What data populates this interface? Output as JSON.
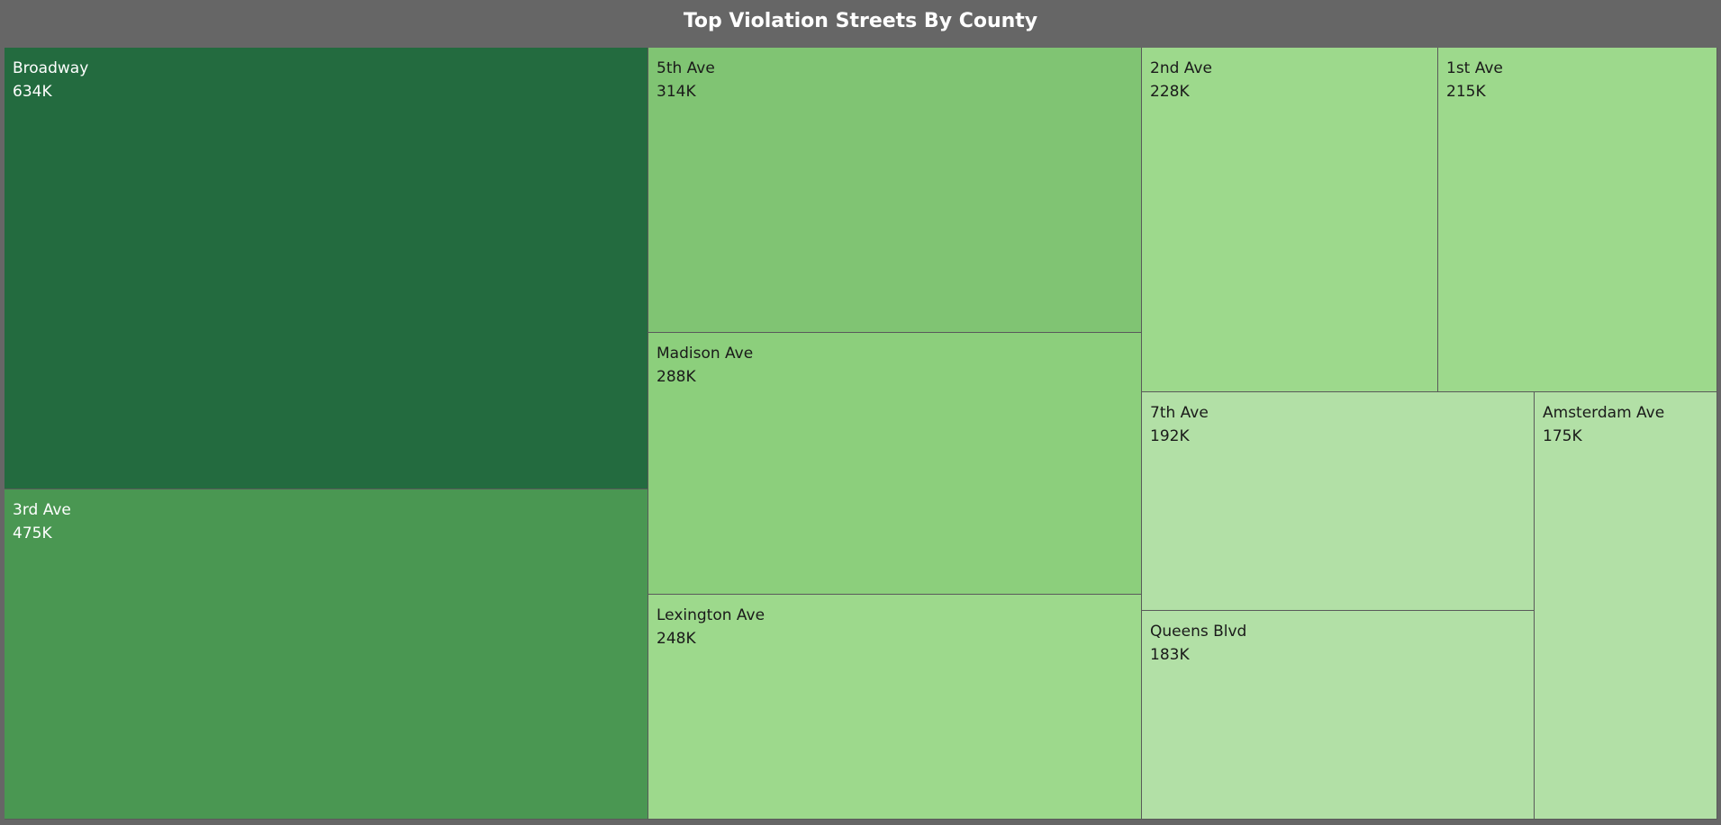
{
  "chart_data": {
    "type": "treemap",
    "title": "Top Violation Streets By County",
    "items": [
      {
        "name": "Broadway",
        "value": 634000,
        "value_label": "634K",
        "color": "#236b3f"
      },
      {
        "name": "3rd Ave",
        "value": 475000,
        "value_label": "475K",
        "color": "#4a9752"
      },
      {
        "name": "5th Ave",
        "value": 314000,
        "value_label": "314K",
        "color": "#80c473"
      },
      {
        "name": "Madison Ave",
        "value": 288000,
        "value_label": "288K",
        "color": "#8ccf7c"
      },
      {
        "name": "Lexington Ave",
        "value": 248000,
        "value_label": "248K",
        "color": "#9dd98c"
      },
      {
        "name": "2nd Ave",
        "value": 228000,
        "value_label": "228K",
        "color": "#9dd98c"
      },
      {
        "name": "1st Ave",
        "value": 215000,
        "value_label": "215K",
        "color": "#9dd98c"
      },
      {
        "name": "7th Ave",
        "value": 192000,
        "value_label": "192K",
        "color": "#b2e0a6"
      },
      {
        "name": "Queens Blvd",
        "value": 183000,
        "value_label": "183K",
        "color": "#b2e0a6"
      },
      {
        "name": "Amsterdam Ave",
        "value": 175000,
        "value_label": "175K",
        "color": "#b2e0a6"
      }
    ],
    "text_colors": {
      "dark_tile": "#ffffff",
      "light_tile": "#1a1a1a"
    }
  }
}
